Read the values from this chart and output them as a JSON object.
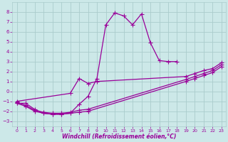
{
  "bg_color": "#cce8e8",
  "grid_color": "#aacccc",
  "line_color": "#990099",
  "marker": "+",
  "markersize": 4,
  "linewidth": 0.9,
  "xlabel": "Windchill (Refroidissement éolien,°C)",
  "xlim": [
    -0.5,
    23.5
  ],
  "ylim": [
    -3.5,
    9.0
  ],
  "xticks": [
    0,
    1,
    2,
    3,
    4,
    5,
    6,
    7,
    8,
    9,
    10,
    11,
    12,
    13,
    14,
    15,
    16,
    17,
    18,
    19,
    20,
    21,
    22,
    23
  ],
  "yticks": [
    -3,
    -2,
    -1,
    0,
    1,
    2,
    3,
    4,
    5,
    6,
    7,
    8
  ],
  "series1_x": [
    0,
    1,
    2,
    3,
    4,
    5,
    6,
    7,
    8,
    9,
    10,
    11,
    12,
    13,
    14,
    15,
    16,
    17,
    18
  ],
  "series1_y": [
    -1.2,
    -1.2,
    -1.8,
    -2.2,
    -2.3,
    -2.3,
    -2.2,
    -1.3,
    -0.5,
    1.3,
    6.7,
    7.9,
    7.6,
    6.7,
    7.8,
    4.9,
    3.1,
    3.0,
    3.0
  ],
  "series2_x": [
    0,
    1,
    2,
    3,
    4,
    5,
    6,
    7,
    8,
    19,
    20,
    21,
    22,
    23
  ],
  "series2_y": [
    -1.2,
    -1.5,
    -2.0,
    -2.2,
    -2.3,
    -2.3,
    -2.2,
    -2.1,
    -2.0,
    1.0,
    1.3,
    1.6,
    1.9,
    2.5
  ],
  "series3_x": [
    0,
    1,
    2,
    3,
    4,
    5,
    6,
    7,
    8,
    19,
    20,
    21,
    22,
    23
  ],
  "series3_y": [
    -1.1,
    -1.4,
    -1.9,
    -2.1,
    -2.2,
    -2.2,
    -2.1,
    -1.9,
    -1.8,
    1.2,
    1.5,
    1.8,
    2.1,
    2.7
  ],
  "series4_x": [
    0,
    6,
    7,
    8,
    9,
    19,
    20,
    21,
    22,
    23
  ],
  "series4_y": [
    -1.0,
    -0.2,
    1.3,
    0.8,
    1.0,
    1.5,
    1.8,
    2.1,
    2.3,
    2.9
  ]
}
